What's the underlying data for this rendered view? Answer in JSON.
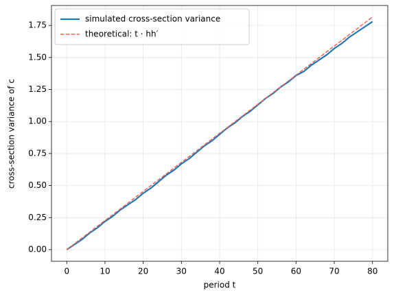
{
  "chart_data": {
    "type": "line",
    "xlabel": "period t",
    "ylabel": "cross-section variance of c",
    "x": [
      0,
      2,
      4,
      6,
      8,
      10,
      12,
      14,
      16,
      18,
      20,
      22,
      24,
      26,
      28,
      30,
      32,
      34,
      36,
      38,
      40,
      42,
      44,
      46,
      48,
      50,
      52,
      54,
      56,
      58,
      60,
      62,
      64,
      66,
      68,
      70,
      72,
      74,
      76,
      78,
      80
    ],
    "series": [
      {
        "name": "simulated cross-section variance",
        "color": "#1f77b4",
        "linestyle": "solid",
        "values": [
          0,
          0.04,
          0.08,
          0.13,
          0.17,
          0.22,
          0.26,
          0.31,
          0.35,
          0.39,
          0.44,
          0.48,
          0.53,
          0.58,
          0.62,
          0.67,
          0.71,
          0.76,
          0.81,
          0.85,
          0.9,
          0.95,
          0.99,
          1.04,
          1.08,
          1.13,
          1.18,
          1.22,
          1.27,
          1.31,
          1.36,
          1.39,
          1.44,
          1.48,
          1.52,
          1.57,
          1.61,
          1.66,
          1.7,
          1.74,
          1.78
        ]
      },
      {
        "name": "theoretical: t · hh′",
        "color": "#f0604d",
        "linestyle": "dashed",
        "values": [
          0,
          0.045,
          0.091,
          0.136,
          0.182,
          0.227,
          0.272,
          0.318,
          0.363,
          0.409,
          0.454,
          0.499,
          0.545,
          0.59,
          0.636,
          0.681,
          0.726,
          0.772,
          0.817,
          0.863,
          0.908,
          0.953,
          0.999,
          1.044,
          1.09,
          1.135,
          1.18,
          1.226,
          1.271,
          1.317,
          1.362,
          1.407,
          1.453,
          1.498,
          1.544,
          1.589,
          1.634,
          1.68,
          1.725,
          1.771,
          1.816
        ]
      }
    ],
    "xlim": [
      -4,
      84
    ],
    "ylim": [
      -0.091,
      1.906
    ],
    "xticks": [
      0,
      10,
      20,
      30,
      40,
      50,
      60,
      70,
      80
    ],
    "yticks": [
      {
        "value": 0,
        "label": "0.00"
      },
      {
        "value": 0.25,
        "label": "0.25"
      },
      {
        "value": 0.5,
        "label": "0.50"
      },
      {
        "value": 0.75,
        "label": "0.75"
      },
      {
        "value": 1,
        "label": "1.00"
      },
      {
        "value": 1.25,
        "label": "1.25"
      },
      {
        "value": 1.5,
        "label": "1.50"
      },
      {
        "value": 1.75,
        "label": "1.75"
      }
    ],
    "grid": true,
    "legend": "upper left"
  }
}
